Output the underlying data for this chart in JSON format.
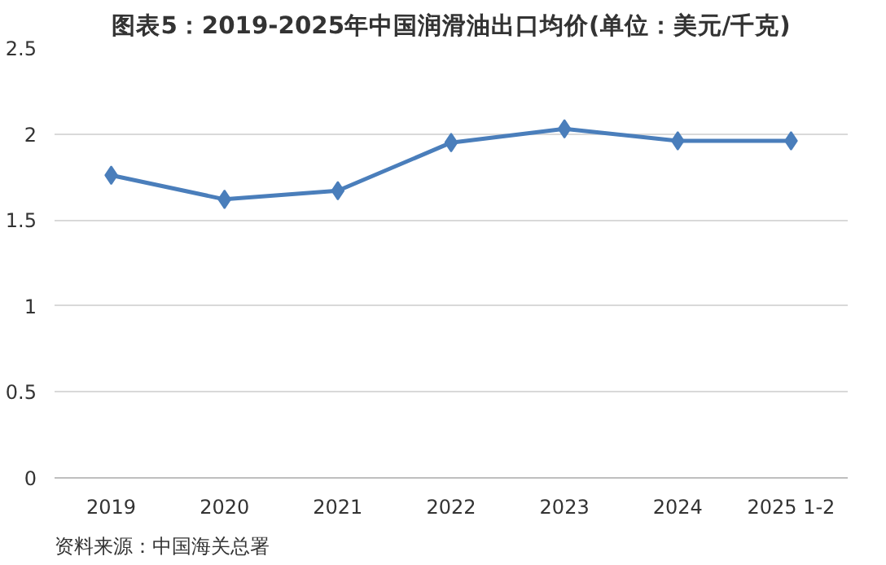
{
  "chart_data": {
    "type": "line",
    "title": "图表5：2019-2025年中国润滑油出口均价(单位：美元/千克)",
    "categories": [
      "2019",
      "2020",
      "2021",
      "2022",
      "2023",
      "2024",
      "2025 1-2"
    ],
    "series": [
      {
        "color": "#4a7ebb",
        "values": [
          1.76,
          1.62,
          1.67,
          1.95,
          2.03,
          1.96,
          1.96
        ]
      }
    ],
    "ylim": [
      0,
      2.5
    ],
    "yticks": [
      0,
      0.5,
      1,
      1.5,
      2,
      2.5
    ],
    "grid": "y",
    "marker": "diamond",
    "line_style": "solid",
    "annotations": [
      "资料来源：中国海关总署"
    ]
  }
}
